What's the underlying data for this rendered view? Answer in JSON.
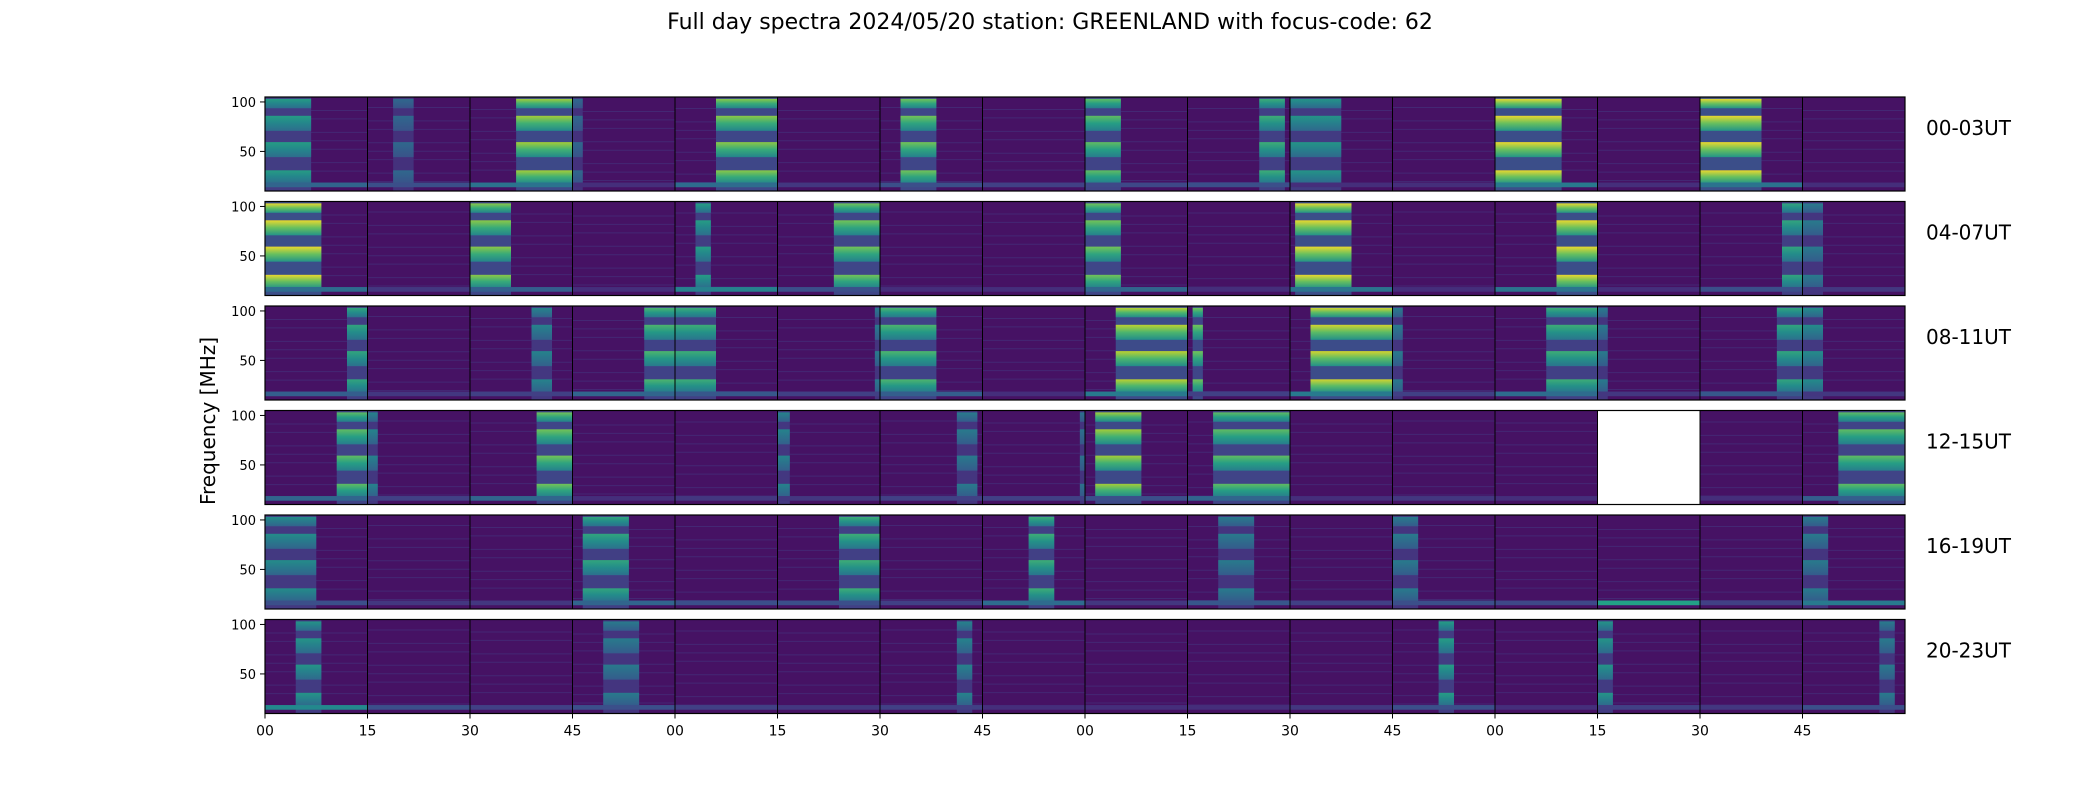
{
  "title": "Full day spectra 2024/05/20 station: GREENLAND with focus-code: 62",
  "chart_data": {
    "type": "heatmap",
    "title": "Full day spectra 2024/05/20 station: GREENLAND with focus-code: 62",
    "ylabel": "Frequency [MHz]",
    "xlabel": "",
    "colormap": "viridis",
    "ylim": [
      10,
      105
    ],
    "y_ticks": [
      50,
      100
    ],
    "x_tick_labels": [
      "00",
      "15",
      "30",
      "45",
      "00",
      "15",
      "30",
      "45",
      "00",
      "15",
      "30",
      "45",
      "00",
      "15",
      "30",
      "45"
    ],
    "columns_per_row": 16,
    "rows": [
      {
        "label": "00-03UT",
        "panels": [
          {
            "burst": [
              0.0,
              0.45,
              0.5
            ],
            "low": 0.45
          },
          {
            "burst": [
              0.25,
              0.45,
              0.2
            ],
            "low": 0.3
          },
          {
            "burst": [
              0.45,
              1.0,
              0.85
            ],
            "low": 0.55
          },
          {
            "burst": [
              0.0,
              0.1,
              0.2
            ],
            "low": 0.1
          },
          {
            "burst": [
              0.4,
              1.0,
              0.8
            ],
            "low": 0.5
          },
          {
            "burst": [
              0.0,
              0.0,
              0.0
            ],
            "low": 0.15
          },
          {
            "burst": [
              0.2,
              0.55,
              0.75
            ],
            "low": 0.3
          },
          {
            "burst": [
              0.0,
              0.0,
              0.0
            ],
            "low": 0.2
          },
          {
            "burst": [
              0.0,
              0.35,
              0.7
            ],
            "low": 0.25
          },
          {
            "burst": [
              0.7,
              0.95,
              0.6
            ],
            "low": 0.3
          },
          {
            "burst": [
              0.0,
              0.5,
              0.45
            ],
            "low": 0.1
          },
          {
            "burst": [
              0.0,
              0.0,
              0.0
            ],
            "low": 0.1
          },
          {
            "burst": [
              0.0,
              0.65,
              1.0
            ],
            "low": 0.6
          },
          {
            "burst": [
              0.0,
              0.0,
              0.0
            ],
            "low": 0.1
          },
          {
            "burst": [
              0.0,
              0.6,
              1.0
            ],
            "low": 0.55
          },
          {
            "burst": [
              0.0,
              0.0,
              0.0
            ],
            "low": 0.1
          }
        ]
      },
      {
        "label": "04-07UT",
        "panels": [
          {
            "burst": [
              0.0,
              0.55,
              1.0
            ],
            "low": 0.5
          },
          {
            "burst": [
              0.0,
              0.0,
              0.0
            ],
            "low": 0.15
          },
          {
            "burst": [
              0.0,
              0.4,
              0.8
            ],
            "low": 0.4
          },
          {
            "burst": [
              0.0,
              0.0,
              0.0
            ],
            "low": 0.1
          },
          {
            "burst": [
              0.2,
              0.35,
              0.5
            ],
            "low": 0.65
          },
          {
            "burst": [
              0.55,
              1.0,
              0.75
            ],
            "low": 0.3
          },
          {
            "burst": [
              0.0,
              0.0,
              0.0
            ],
            "low": 0.1
          },
          {
            "burst": [
              0.0,
              0.0,
              0.0
            ],
            "low": 0.1
          },
          {
            "burst": [
              0.0,
              0.35,
              0.75
            ],
            "low": 0.45
          },
          {
            "burst": [
              0.0,
              0.0,
              0.0
            ],
            "low": 0.1
          },
          {
            "burst": [
              0.05,
              0.6,
              1.0
            ],
            "low": 0.55
          },
          {
            "burst": [
              0.0,
              0.0,
              0.0
            ],
            "low": 0.1
          },
          {
            "burst": [
              0.6,
              1.0,
              1.0
            ],
            "low": 0.55
          },
          {
            "burst": [
              0.0,
              0.0,
              0.0
            ],
            "low": 0.1
          },
          {
            "burst": [
              0.8,
              1.0,
              0.55
            ],
            "low": 0.3
          },
          {
            "burst": [
              0.0,
              0.2,
              0.3
            ],
            "low": 0.15
          }
        ]
      },
      {
        "label": "08-11UT",
        "panels": [
          {
            "burst": [
              0.8,
              1.0,
              0.55
            ],
            "low": 0.4
          },
          {
            "burst": [
              0.0,
              0.0,
              0.0
            ],
            "low": 0.15
          },
          {
            "burst": [
              0.6,
              0.8,
              0.35
            ],
            "low": 0.2
          },
          {
            "burst": [
              0.7,
              1.0,
              0.65
            ],
            "low": 0.45
          },
          {
            "burst": [
              0.0,
              0.4,
              0.6
            ],
            "low": 0.35
          },
          {
            "burst": [
              0.95,
              1.0,
              0.3
            ],
            "low": 0.2
          },
          {
            "burst": [
              0.0,
              0.55,
              0.65
            ],
            "low": 0.4
          },
          {
            "burst": [
              0.0,
              0.0,
              0.0
            ],
            "low": 0.1
          },
          {
            "burst": [
              0.3,
              1.0,
              0.9
            ],
            "low": 0.6
          },
          {
            "burst": [
              0.05,
              0.15,
              0.75
            ],
            "low": 0.2
          },
          {
            "burst": [
              0.2,
              1.0,
              0.95
            ],
            "low": 0.6
          },
          {
            "burst": [
              0.0,
              0.1,
              0.3
            ],
            "low": 0.2
          },
          {
            "burst": [
              0.5,
              1.0,
              0.6
            ],
            "low": 0.5
          },
          {
            "burst": [
              0.0,
              0.1,
              0.3
            ],
            "low": 0.15
          },
          {
            "burst": [
              0.75,
              1.0,
              0.55
            ],
            "low": 0.35
          },
          {
            "burst": [
              0.0,
              0.2,
              0.4
            ],
            "low": 0.15
          }
        ]
      },
      {
        "label": "12-15UT",
        "panels": [
          {
            "burst": [
              0.7,
              1.0,
              0.7
            ],
            "low": 0.45
          },
          {
            "burst": [
              0.0,
              0.1,
              0.35
            ],
            "low": 0.2
          },
          {
            "burst": [
              0.65,
              1.0,
              0.75
            ],
            "low": 0.45
          },
          {
            "burst": [
              0.0,
              0.0,
              0.0
            ],
            "low": 0.1
          },
          {
            "burst": [
              0.0,
              0.0,
              0.0
            ],
            "low": 0.15
          },
          {
            "burst": [
              0.0,
              0.12,
              0.35
            ],
            "low": 0.15
          },
          {
            "burst": [
              0.75,
              0.95,
              0.3
            ],
            "low": 0.2
          },
          {
            "burst": [
              0.95,
              1.0,
              0.25
            ],
            "low": 0.2
          },
          {
            "burst": [
              0.1,
              0.55,
              0.85
            ],
            "low": 0.3
          },
          {
            "burst": [
              0.25,
              1.0,
              0.7
            ],
            "low": 0.45
          },
          {
            "burst": [
              0.0,
              0.0,
              0.0
            ],
            "low": 0.1
          },
          {
            "burst": [
              0.0,
              0.0,
              0.0
            ],
            "low": 0.15
          },
          {
            "burst": [
              0.0,
              0.0,
              0.0
            ],
            "low": 0.1
          },
          {
            "empty": true
          },
          {
            "burst": [
              0.0,
              0.0,
              0.0
            ],
            "low": 0.1
          },
          {
            "burst": [
              0.35,
              1.0,
              0.7
            ],
            "low": 0.4
          }
        ]
      },
      {
        "label": "16-19UT",
        "panels": [
          {
            "burst": [
              0.0,
              0.5,
              0.4
            ],
            "low": 0.3
          },
          {
            "burst": [
              0.0,
              0.0,
              0.0
            ],
            "low": 0.15
          },
          {
            "burst": [
              0.0,
              0.0,
              0.0
            ],
            "low": 0.15
          },
          {
            "burst": [
              0.1,
              0.55,
              0.55
            ],
            "low": 0.45
          },
          {
            "burst": [
              0.0,
              0.0,
              0.0
            ],
            "low": 0.3
          },
          {
            "burst": [
              0.6,
              1.0,
              0.6
            ],
            "low": 0.3
          },
          {
            "burst": [
              0.0,
              0.0,
              0.0
            ],
            "low": 0.2
          },
          {
            "burst": [
              0.45,
              0.7,
              0.6
            ],
            "low": 0.5
          },
          {
            "burst": [
              0.0,
              0.0,
              0.0
            ],
            "low": 0.15
          },
          {
            "burst": [
              0.3,
              0.65,
              0.3
            ],
            "low": 0.35
          },
          {
            "burst": [
              0.0,
              0.0,
              0.0
            ],
            "low": 0.2
          },
          {
            "burst": [
              0.0,
              0.25,
              0.3
            ],
            "low": 0.3
          },
          {
            "burst": [
              0.0,
              0.0,
              0.0
            ],
            "low": 0.25
          },
          {
            "burst": [
              0.0,
              0.0,
              0.0
            ],
            "low": 0.9
          },
          {
            "burst": [
              0.0,
              0.0,
              0.0
            ],
            "low": 0.2
          },
          {
            "burst": [
              0.0,
              0.25,
              0.3
            ],
            "low": 0.6
          }
        ]
      },
      {
        "label": "20-23UT",
        "panels": [
          {
            "burst": [
              0.3,
              0.55,
              0.45
            ],
            "low": 0.7
          },
          {
            "burst": [
              0.0,
              0.0,
              0.0
            ],
            "low": 0.3
          },
          {
            "burst": [
              0.0,
              0.0,
              0.0
            ],
            "low": 0.2
          },
          {
            "burst": [
              0.3,
              0.65,
              0.3
            ],
            "low": 0.3
          },
          {
            "burst": [
              0.0,
              0.0,
              0.0
            ],
            "low": 0.2
          },
          {
            "burst": [
              0.0,
              0.0,
              0.0
            ],
            "low": 0.15
          },
          {
            "burst": [
              0.75,
              0.9,
              0.35
            ],
            "low": 0.2
          },
          {
            "burst": [
              0.0,
              0.0,
              0.0
            ],
            "low": 0.1
          },
          {
            "burst": [
              0.0,
              0.0,
              0.0
            ],
            "low": 0.1
          },
          {
            "burst": [
              0.0,
              0.0,
              0.0
            ],
            "low": 0.1
          },
          {
            "burst": [
              0.0,
              0.0,
              0.0
            ],
            "low": 0.15
          },
          {
            "burst": [
              0.45,
              0.6,
              0.5
            ],
            "low": 0.3
          },
          {
            "burst": [
              0.0,
              0.0,
              0.0
            ],
            "low": 0.1
          },
          {
            "burst": [
              0.0,
              0.15,
              0.45
            ],
            "low": 0.2
          },
          {
            "burst": [
              0.0,
              0.0,
              0.0
            ],
            "low": 0.15
          },
          {
            "burst": [
              0.75,
              0.9,
              0.3
            ],
            "low": 0.3
          }
        ]
      }
    ]
  }
}
